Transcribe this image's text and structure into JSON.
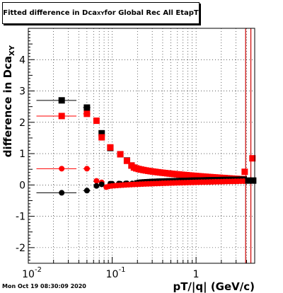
{
  "window": {
    "title_prefix": "Fitted difference in Dca",
    "title_sub": "XY",
    "title_suffix": " for Global Rec All EtapT",
    "timestamp": "Mon Oct 19 08:30:09 2020"
  },
  "chart_data": {
    "type": "scatter",
    "title": "Fitted difference in Dca_XY for Global Rec All EtapT",
    "xlabel": "pT/|q| (GeV/c)",
    "ylabel": "difference in Dca_XY",
    "xscale": "log",
    "xlim": [
      0.01,
      5
    ],
    "ylim": [
      -2.5,
      5
    ],
    "x_tick_labels": [
      {
        "x": 0.01,
        "base": "10",
        "exp": "-2"
      },
      {
        "x": 0.1,
        "base": "10",
        "exp": "-1"
      },
      {
        "x": 1,
        "base": "1",
        "exp": ""
      }
    ],
    "y_tick_labels": [
      "-2",
      "-1",
      "0",
      "1",
      "2",
      "3",
      "4"
    ],
    "y_ticks": [
      -2,
      -1,
      0,
      1,
      2,
      3,
      4
    ],
    "grid": true,
    "vertical_lines": [
      {
        "x": 3.9,
        "color": "#cc0000"
      },
      {
        "x": 4.5,
        "color": "#cc0000"
      }
    ],
    "series": [
      {
        "marker": "square",
        "color": "#000000",
        "points": [
          [
            0.025,
            2.7,
            0.0125
          ],
          [
            0.05,
            2.47,
            0.005
          ],
          [
            0.075,
            1.65,
            0.0025
          ],
          [
            0.095,
            1.18,
            0.003
          ],
          [
            0.125,
            0.98,
            0.004
          ],
          [
            0.15,
            0.78,
            0.005
          ],
          [
            0.17,
            0.62,
            0.005
          ]
        ]
      },
      {
        "marker": "square",
        "color": "#ff0000",
        "points": [
          [
            0.025,
            2.2,
            0.0125
          ],
          [
            0.05,
            2.27,
            0.005
          ],
          [
            0.065,
            2.05,
            0.0025
          ],
          [
            0.075,
            1.52,
            0.0025
          ],
          [
            0.095,
            1.2,
            0.003
          ],
          [
            0.125,
            0.98,
            0.004
          ],
          [
            0.15,
            0.77,
            0.005
          ]
        ]
      },
      {
        "marker": "circle",
        "color": "#ff0000",
        "points": [
          [
            0.025,
            0.52,
            0.0125
          ],
          [
            0.05,
            0.52,
            0.005
          ],
          [
            0.065,
            0.13,
            0.0025
          ],
          [
            0.075,
            0.08,
            0.0025
          ]
        ]
      },
      {
        "marker": "circle",
        "color": "#000000",
        "points": [
          [
            0.025,
            -0.25,
            0.0125
          ],
          [
            0.05,
            -0.18,
            0.005
          ],
          [
            0.065,
            -0.03,
            0.0025
          ],
          [
            0.075,
            0.02,
            0.0025
          ],
          [
            0.095,
            0.04,
            0.003
          ],
          [
            0.125,
            0.04,
            0.004
          ],
          [
            0.15,
            0.05,
            0.005
          ]
        ]
      }
    ],
    "dense_bands": [
      {
        "marker": "square",
        "color": "#ff0000",
        "x_from": 0.17,
        "x_to": 3.7,
        "y_start": 0.62,
        "y_end": 0.18,
        "count": 48
      },
      {
        "marker": "square",
        "color": "#000000",
        "x_from": 0.2,
        "x_to": 3.7,
        "y_start": 0.05,
        "y_end": 0.17,
        "count": 44
      },
      {
        "marker": "circle",
        "color": "#000000",
        "x_from": 0.1,
        "x_to": 0.25,
        "y_start": 0.04,
        "y_end": 0.05,
        "count": 6
      },
      {
        "marker": "circle",
        "color": "#ff0000",
        "x_from": 0.085,
        "x_to": 3.7,
        "y_start": -0.07,
        "y_end": 0.12,
        "count": 50
      }
    ],
    "tail_points": [
      {
        "marker": "square",
        "color": "#ff0000",
        "x": 3.8,
        "y": 0.42,
        "w": 0.15
      },
      {
        "marker": "square",
        "color": "#ff0000",
        "x": 4.7,
        "y": 0.85,
        "w": 0.2
      },
      {
        "marker": "square",
        "color": "#000000",
        "x": 4.2,
        "y": 0.14,
        "w": 0.2
      },
      {
        "marker": "square",
        "color": "#000000",
        "x": 4.8,
        "y": 0.14,
        "w": 0.2
      }
    ]
  }
}
